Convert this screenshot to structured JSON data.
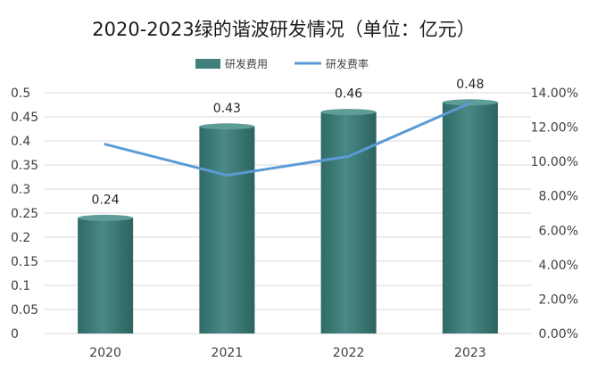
{
  "chart_data": {
    "type": "bar",
    "title": "2020-2023绿的谐波研发情况（单位：亿元）",
    "categories": [
      "2020",
      "2021",
      "2022",
      "2023"
    ],
    "series": [
      {
        "name": "研发费用",
        "type": "bar",
        "axis": "left",
        "values": [
          0.24,
          0.43,
          0.46,
          0.48
        ],
        "color": "#3f7f7c"
      },
      {
        "name": "研发费率",
        "type": "line",
        "axis": "right",
        "values": [
          11.0,
          9.2,
          10.3,
          13.4
        ],
        "color": "#5b9bd5"
      }
    ],
    "data_labels": [
      "0.24",
      "0.43",
      "0.46",
      "0.48"
    ],
    "y_left": {
      "min": 0,
      "max": 0.5,
      "ticks": [
        "0",
        "0.05",
        "0.1",
        "0.15",
        "0.2",
        "0.25",
        "0.3",
        "0.35",
        "0.4",
        "0.45",
        "0.5"
      ]
    },
    "y_right": {
      "min": 0,
      "max": 14,
      "ticks": [
        "0.00%",
        "2.00%",
        "4.00%",
        "6.00%",
        "8.00%",
        "10.00%",
        "12.00%",
        "14.00%"
      ]
    },
    "legend_position": "top-center",
    "grid": true
  }
}
